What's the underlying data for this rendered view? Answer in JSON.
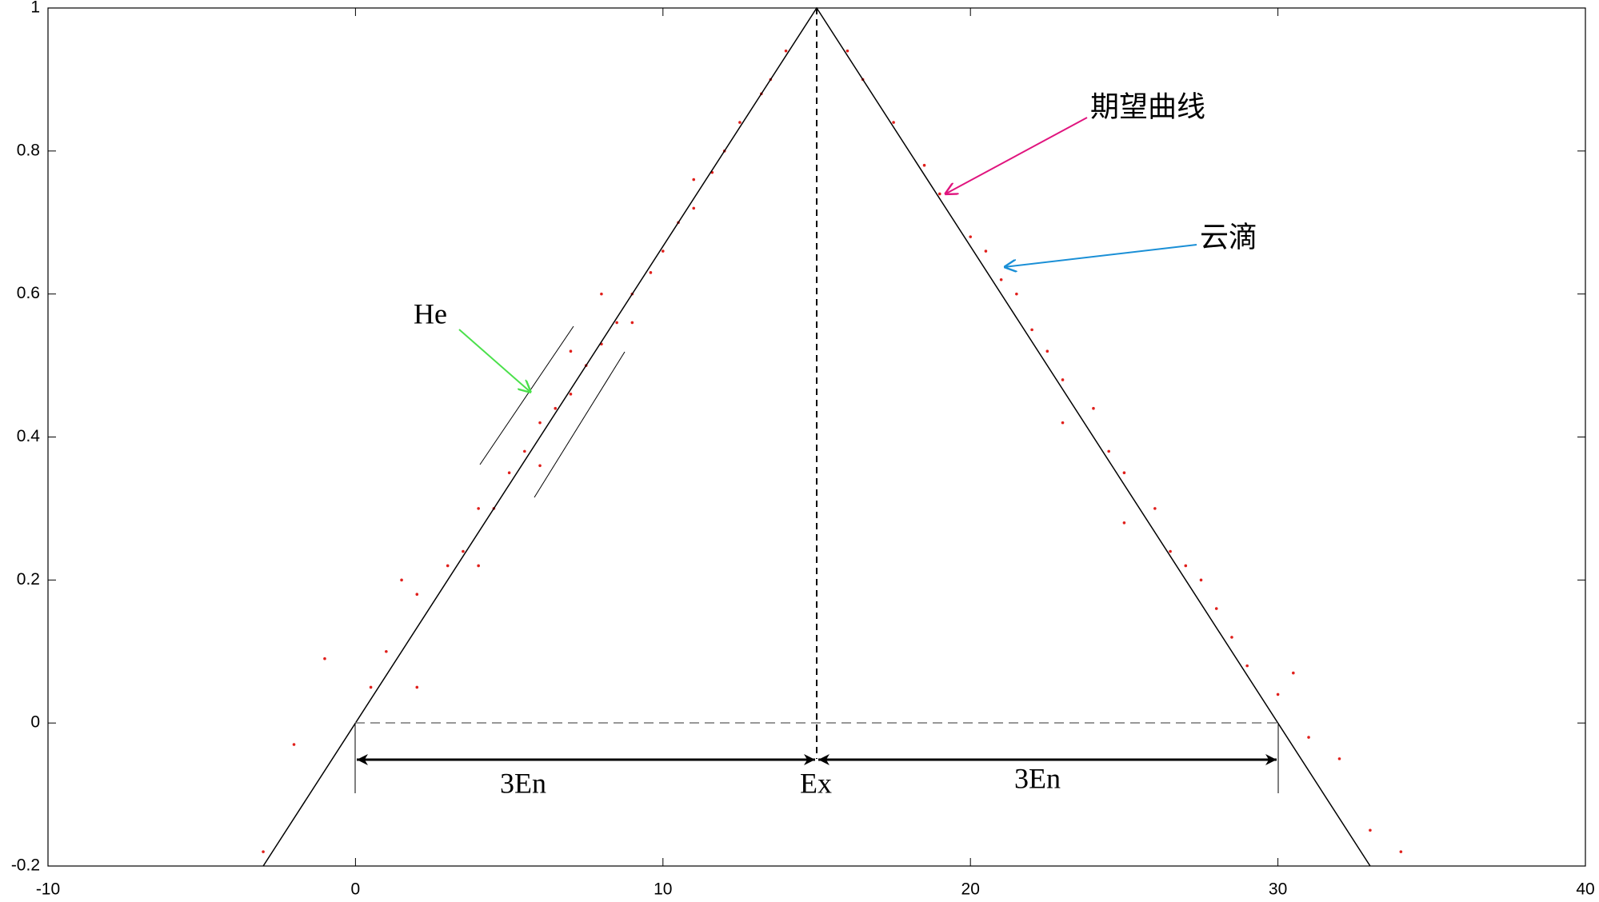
{
  "chart_data": {
    "type": "scatter",
    "xlim": [
      -10,
      40
    ],
    "ylim": [
      -0.2,
      1
    ],
    "xticks": [
      -10,
      0,
      10,
      20,
      30,
      40
    ],
    "yticks": [
      -0.2,
      0,
      0.2,
      0.4,
      0.6,
      0.8,
      1
    ],
    "expectation_curve": {
      "x": [
        -3,
        15,
        33
      ],
      "y": [
        -0.2,
        1,
        -0.2
      ],
      "color": "#000000"
    },
    "drops": {
      "color": "#e0201c",
      "x": [
        14,
        13.5,
        13.2,
        12.5,
        12,
        11.6,
        11,
        10.5,
        10,
        9.6,
        9,
        8.5,
        8,
        7.5,
        7,
        6.5,
        6,
        5.5,
        5,
        4.5,
        4,
        3.5,
        3,
        2,
        1.5,
        1,
        0.5,
        -1,
        -2,
        -3,
        2,
        6,
        7,
        9,
        11,
        4,
        8,
        16,
        16.5,
        17.5,
        18.5,
        19,
        20,
        20.5,
        21,
        22,
        22.5,
        23,
        24,
        24.5,
        25,
        26,
        26.5,
        27,
        28,
        28.5,
        29,
        30,
        31,
        32,
        33,
        34,
        25,
        23,
        21.5,
        27.5,
        30.5
      ],
      "y": [
        0.94,
        0.9,
        0.88,
        0.84,
        0.8,
        0.77,
        0.72,
        0.7,
        0.66,
        0.63,
        0.6,
        0.56,
        0.53,
        0.5,
        0.46,
        0.44,
        0.42,
        0.38,
        0.35,
        0.3,
        0.3,
        0.24,
        0.22,
        0.18,
        0.2,
        0.1,
        0.05,
        0.09,
        -0.03,
        -0.18,
        0.05,
        0.36,
        0.52,
        0.56,
        0.76,
        0.22,
        0.6,
        0.94,
        0.9,
        0.84,
        0.78,
        0.74,
        0.68,
        0.66,
        0.62,
        0.55,
        0.52,
        0.48,
        0.44,
        0.38,
        0.35,
        0.3,
        0.24,
        0.22,
        0.16,
        0.12,
        0.08,
        0.04,
        -0.02,
        -0.05,
        -0.15,
        -0.18,
        0.28,
        0.42,
        0.6,
        0.2,
        0.07
      ]
    },
    "annotations": [
      "期望曲线",
      "云滴",
      "He",
      "3En",
      "Ex",
      "3En"
    ]
  }
}
